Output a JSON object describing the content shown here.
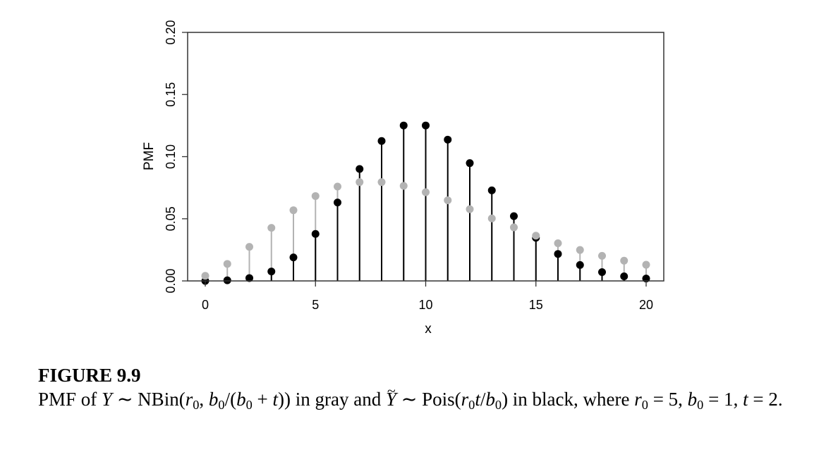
{
  "chart_data": {
    "type": "scatter",
    "xlabel": "x",
    "ylabel": "PMF",
    "xlim": [
      -0.8,
      20.8
    ],
    "ylim": [
      0.0,
      0.2
    ],
    "x_ticks": [
      0,
      5,
      10,
      15,
      20
    ],
    "y_ticks": [
      "0.00",
      "0.05",
      "0.10",
      "0.15",
      "0.20"
    ],
    "x": [
      0,
      1,
      2,
      3,
      4,
      5,
      6,
      7,
      8,
      9,
      10,
      11,
      12,
      13,
      14,
      15,
      16,
      17,
      18,
      19,
      20
    ],
    "series": [
      {
        "color": "#b3b3b3",
        "values": [
          0.0041,
          0.0137,
          0.0274,
          0.0427,
          0.0569,
          0.0683,
          0.0759,
          0.0795,
          0.0795,
          0.0765,
          0.0714,
          0.0649,
          0.0577,
          0.0503,
          0.0431,
          0.0364,
          0.0303,
          0.0249,
          0.0202,
          0.0163,
          0.013
        ]
      },
      {
        "color": "#000000",
        "values": [
          0.0,
          0.0005,
          0.0023,
          0.0076,
          0.0189,
          0.0378,
          0.0631,
          0.0901,
          0.1126,
          0.1251,
          0.1251,
          0.1137,
          0.0948,
          0.0729,
          0.0521,
          0.0347,
          0.0217,
          0.0128,
          0.0071,
          0.0037,
          0.0019
        ]
      }
    ]
  },
  "caption": {
    "label": "FIGURE 9.9",
    "text": "PMF of Y ~ NBin(r0, b0/(b0 + t)) in gray and Ỹ ~ Pois(r0t/b0) in black, where r0 = 5, b0 = 1, t = 2."
  }
}
